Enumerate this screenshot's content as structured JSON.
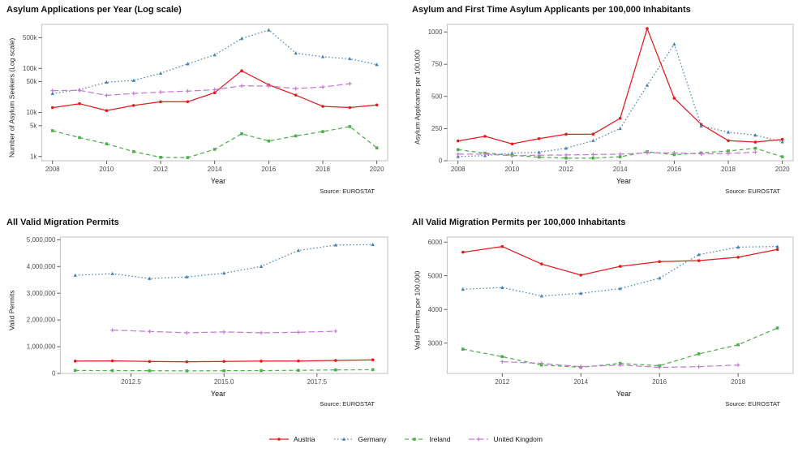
{
  "legend": {
    "items": [
      {
        "label": "Austria",
        "color": "#e41a1c",
        "dash": "solid",
        "marker": "circle"
      },
      {
        "label": "Germany",
        "color": "#4682b4",
        "dash": "dotted",
        "marker": "triangle"
      },
      {
        "label": "Ireland",
        "color": "#4daf4a",
        "dash": "dashed",
        "marker": "square"
      },
      {
        "label": "United Kingdom",
        "color": "#c77ad6",
        "dash": "longdash",
        "marker": "plus"
      }
    ]
  },
  "chart_data": [
    {
      "type": "line",
      "title": "Asylum Applications per Year (Log scale)",
      "xlabel": "Year",
      "ylabel": "Number of Asylum Seekers (Log scale)",
      "source": "Source: EUROSTAT",
      "yscale": "log",
      "xlim": [
        2007.6,
        2020.4
      ],
      "ylim": [
        800,
        1000000
      ],
      "grid": false,
      "legend_position": "bottom-shared",
      "x": [
        2008,
        2009,
        2010,
        2011,
        2012,
        2013,
        2014,
        2015,
        2016,
        2017,
        2018,
        2019,
        2020
      ],
      "xticks": [
        {
          "v": 2008,
          "label": "2008"
        },
        {
          "v": 2010,
          "label": "2010"
        },
        {
          "v": 2012,
          "label": "2012"
        },
        {
          "v": 2014,
          "label": "2014"
        },
        {
          "v": 2016,
          "label": "2016"
        },
        {
          "v": 2018,
          "label": "2018"
        },
        {
          "v": 2020,
          "label": "2020"
        }
      ],
      "yticks": [
        {
          "v": 1000,
          "label": "1k"
        },
        {
          "v": 5000,
          "label": "5k"
        },
        {
          "v": 10000,
          "label": "10k"
        },
        {
          "v": 50000,
          "label": "50k"
        },
        {
          "v": 100000,
          "label": "100k"
        },
        {
          "v": 500000,
          "label": "500k"
        }
      ],
      "series": [
        {
          "name": "Austria",
          "values": [
            12841,
            15821,
            11012,
            14416,
            17413,
            17503,
            28035,
            88160,
            42255,
            24715,
            13746,
            12886,
            14775
          ]
        },
        {
          "name": "Germany",
          "values": [
            26845,
            32910,
            48475,
            53235,
            77485,
            126705,
            202645,
            476510,
            745155,
            222560,
            184180,
            165615,
            121955
          ]
        },
        {
          "name": "Ireland",
          "values": [
            3855,
            2680,
            1935,
            1290,
            955,
            945,
            1450,
            3275,
            2245,
            2930,
            3670,
            4780,
            1565
          ]
        },
        {
          "name": "United Kingdom",
          "values": [
            31315,
            31695,
            24365,
            26945,
            28895,
            30585,
            32785,
            40160,
            39735,
            34780,
            37730,
            44835,
            null
          ]
        }
      ]
    },
    {
      "type": "line",
      "title": "Asylum and First Time Asylum Applicants per 100,000 Inhabitants",
      "xlabel": "Year",
      "ylabel": "Asylum Applicants per 100,000",
      "source": "Source: EUROSTAT",
      "yscale": "linear",
      "xlim": [
        2007.6,
        2020.4
      ],
      "ylim": [
        0,
        1060
      ],
      "grid": false,
      "legend_position": "bottom-shared",
      "x": [
        2008,
        2009,
        2010,
        2011,
        2012,
        2013,
        2014,
        2015,
        2016,
        2017,
        2018,
        2019,
        2020
      ],
      "xticks": [
        {
          "v": 2008,
          "label": "2008"
        },
        {
          "v": 2010,
          "label": "2010"
        },
        {
          "v": 2012,
          "label": "2012"
        },
        {
          "v": 2014,
          "label": "2014"
        },
        {
          "v": 2016,
          "label": "2016"
        },
        {
          "v": 2018,
          "label": "2018"
        },
        {
          "v": 2020,
          "label": "2020"
        }
      ],
      "yticks": [
        {
          "v": 0,
          "label": "0"
        },
        {
          "v": 250,
          "label": "250"
        },
        {
          "v": 500,
          "label": "500"
        },
        {
          "v": 750,
          "label": "750"
        },
        {
          "v": 1000,
          "label": "1000"
        }
      ],
      "series": [
        {
          "name": "Austria",
          "values": [
            154,
            190,
            131,
            172,
            206,
            207,
            330,
            1027,
            486,
            282,
            156,
            145,
            166
          ]
        },
        {
          "name": "Germany",
          "values": [
            33,
            40,
            59,
            66,
            97,
            157,
            250,
            587,
            906,
            270,
            222,
            199,
            147
          ]
        },
        {
          "name": "Ireland",
          "values": [
            86,
            59,
            43,
            28,
            21,
            21,
            31,
            70,
            47,
            61,
            76,
            97,
            31
          ]
        },
        {
          "name": "United Kingdom",
          "values": [
            51,
            51,
            39,
            43,
            45,
            48,
            51,
            62,
            61,
            53,
            57,
            67,
            null
          ]
        }
      ]
    },
    {
      "type": "line",
      "title": "All Valid Migration Permits",
      "xlabel": "Year",
      "ylabel": "Valid Permits",
      "source": "Source: EUROSTAT",
      "yscale": "linear",
      "xlim": [
        2010.6,
        2019.4
      ],
      "ylim": [
        0,
        5100000
      ],
      "grid": false,
      "legend_position": "bottom-shared",
      "x": [
        2011,
        2012,
        2013,
        2014,
        2015,
        2016,
        2017,
        2018,
        2019
      ],
      "xticks": [
        {
          "v": 2012.5,
          "label": "2012.5"
        },
        {
          "v": 2015,
          "label": "2015.0"
        },
        {
          "v": 2017.5,
          "label": "2017.5"
        }
      ],
      "yticks": [
        {
          "v": 0,
          "label": "0"
        },
        {
          "v": 1000000,
          "label": "1,000,000"
        },
        {
          "v": 2000000,
          "label": "2,000,000"
        },
        {
          "v": 3000000,
          "label": "3,000,000"
        },
        {
          "v": 4000000,
          "label": "4,000,000"
        },
        {
          "v": 5000000,
          "label": "5,000,000"
        }
      ],
      "series": [
        {
          "name": "Austria",
          "values": [
            460000,
            470000,
            445000,
            435000,
            450000,
            460000,
            465000,
            485000,
            510000
          ]
        },
        {
          "name": "Germany",
          "values": [
            3670000,
            3730000,
            3550000,
            3610000,
            3750000,
            4000000,
            4600000,
            4800000,
            4820000
          ]
        },
        {
          "name": "Ireland",
          "values": [
            110000,
            105000,
            100000,
            95000,
            100000,
            105000,
            115000,
            130000,
            140000
          ]
        },
        {
          "name": "United Kingdom",
          "values": [
            null,
            1620000,
            1570000,
            1520000,
            1550000,
            1520000,
            1540000,
            1580000,
            null
          ]
        }
      ]
    },
    {
      "type": "line",
      "title": "All Valid Migration Permits per 100,000 Inhabitants",
      "xlabel": "Year",
      "ylabel": "Valid Permits per 100,000",
      "source": "Source: EUROSTAT",
      "yscale": "linear",
      "xlim": [
        2010.6,
        2019.4
      ],
      "ylim": [
        2100,
        6150
      ],
      "grid": false,
      "legend_position": "bottom-shared",
      "x": [
        2011,
        2012,
        2013,
        2014,
        2015,
        2016,
        2017,
        2018,
        2019
      ],
      "xticks": [
        {
          "v": 2012,
          "label": "2012"
        },
        {
          "v": 2014,
          "label": "2014"
        },
        {
          "v": 2016,
          "label": "2016"
        },
        {
          "v": 2018,
          "label": "2018"
        }
      ],
      "yticks": [
        {
          "v": 3000,
          "label": "3000"
        },
        {
          "v": 4000,
          "label": "4000"
        },
        {
          "v": 5000,
          "label": "5000"
        },
        {
          "v": 6000,
          "label": "6000"
        }
      ],
      "series": [
        {
          "name": "Austria",
          "values": [
            5700,
            5870,
            5350,
            5020,
            5280,
            5420,
            5450,
            5550,
            5780
          ]
        },
        {
          "name": "Germany",
          "values": [
            4600,
            4650,
            4400,
            4480,
            4620,
            4930,
            5630,
            5850,
            5870
          ]
        },
        {
          "name": "Ireland",
          "values": [
            2820,
            2600,
            2350,
            2280,
            2400,
            2330,
            2680,
            2950,
            3450
          ]
        },
        {
          "name": "United Kingdom",
          "values": [
            null,
            2450,
            2400,
            2300,
            2350,
            2280,
            2300,
            2350,
            null
          ]
        }
      ]
    }
  ]
}
